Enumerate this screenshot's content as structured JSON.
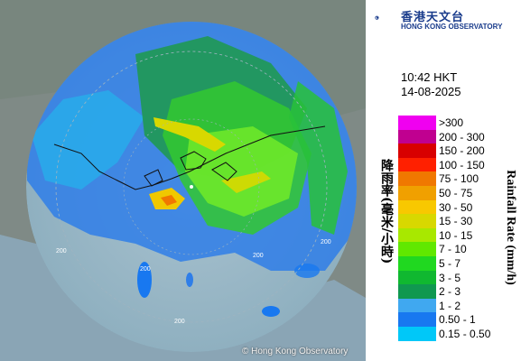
{
  "header": {
    "logo_chinese": "香港天文台",
    "logo_english": "HONG KONG OBSERVATORY"
  },
  "timestamp": {
    "time": "10:42 HKT",
    "date": "14-08-2025"
  },
  "map": {
    "range_labels": [
      "200",
      "200",
      "200",
      "200",
      "200"
    ],
    "copyright": "© Hong Kong Observatory"
  },
  "legend": {
    "title_en": "Rainfall Rate (mm/h)",
    "title_zh": "降雨率(毫米/小時)",
    "items": [
      {
        "label": ">300",
        "color": "#f000f0"
      },
      {
        "label": "200 - 300",
        "color": "#c00090"
      },
      {
        "label": "150 - 200",
        "color": "#d80000"
      },
      {
        "label": "100 - 150",
        "color": "#ff2000"
      },
      {
        "label": "75 - 100",
        "color": "#f07800"
      },
      {
        "label": "50 - 75",
        "color": "#f0a000"
      },
      {
        "label": "30 - 50",
        "color": "#f8c800"
      },
      {
        "label": "15 - 30",
        "color": "#d8d800"
      },
      {
        "label": "10 - 15",
        "color": "#a8e800"
      },
      {
        "label": "7 - 10",
        "color": "#60e800"
      },
      {
        "label": "5 - 7",
        "color": "#20d820"
      },
      {
        "label": "3 - 5",
        "color": "#10b830"
      },
      {
        "label": "2 - 3",
        "color": "#109850"
      },
      {
        "label": "1 - 2",
        "color": "#40a8f0"
      },
      {
        "label": "0.50 - 1",
        "color": "#1878f0"
      },
      {
        "label": "0.15 - 0.50",
        "color": "#00c8f8"
      }
    ]
  }
}
